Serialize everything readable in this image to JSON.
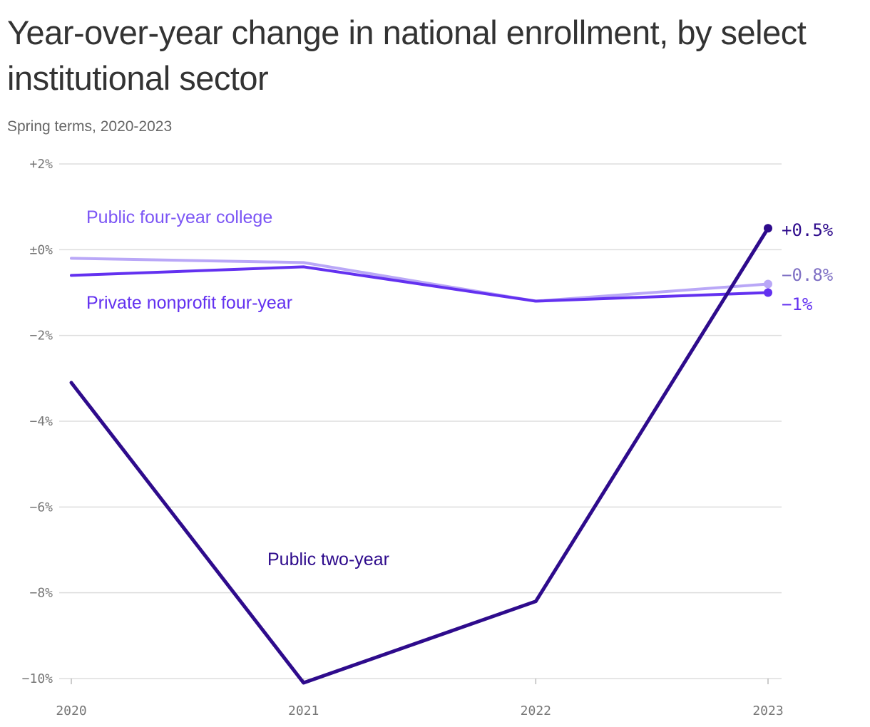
{
  "header": {
    "title": "Year-over-year change in national enrollment, by select institutional sector",
    "subtitle": "Spring terms, 2020-2023"
  },
  "colors": {
    "grid": "#dddddd",
    "axis_text": "#777777",
    "public_four_year": "#b9a7f7",
    "public_four_year_label": "#7b55f5",
    "public_four_year_end_label": "#7f70c4",
    "private_nonprofit": "#6331f0",
    "public_two_year": "#2e0b8c"
  },
  "chart_data": {
    "type": "line",
    "title": "Year-over-year change in national enrollment, by select institutional sector",
    "subtitle": "Spring terms, 2020-2023",
    "xlabel": "",
    "ylabel": "",
    "x": [
      "2020",
      "2021",
      "2022",
      "2023"
    ],
    "ylim": [
      -10,
      2
    ],
    "y_ticks": [
      2,
      0,
      -2,
      -4,
      -6,
      -8,
      -10
    ],
    "y_tick_labels": [
      "+2%",
      "±0%",
      "−2%",
      "−4%",
      "−6%",
      "−8%",
      "−10%"
    ],
    "grid": true,
    "series": [
      {
        "key": "public_four_year",
        "name": "Public four-year college",
        "values": [
          -0.2,
          -0.3,
          -1.2,
          -0.8
        ],
        "end_label": "−0.8%"
      },
      {
        "key": "private_nonprofit",
        "name": "Private nonprofit four-year",
        "values": [
          -0.6,
          -0.4,
          -1.2,
          -1.0
        ],
        "end_label": "−1%"
      },
      {
        "key": "public_two_year",
        "name": "Public two-year",
        "values": [
          -3.1,
          -10.1,
          -8.2,
          0.5
        ],
        "end_label": "+0.5%"
      }
    ]
  }
}
